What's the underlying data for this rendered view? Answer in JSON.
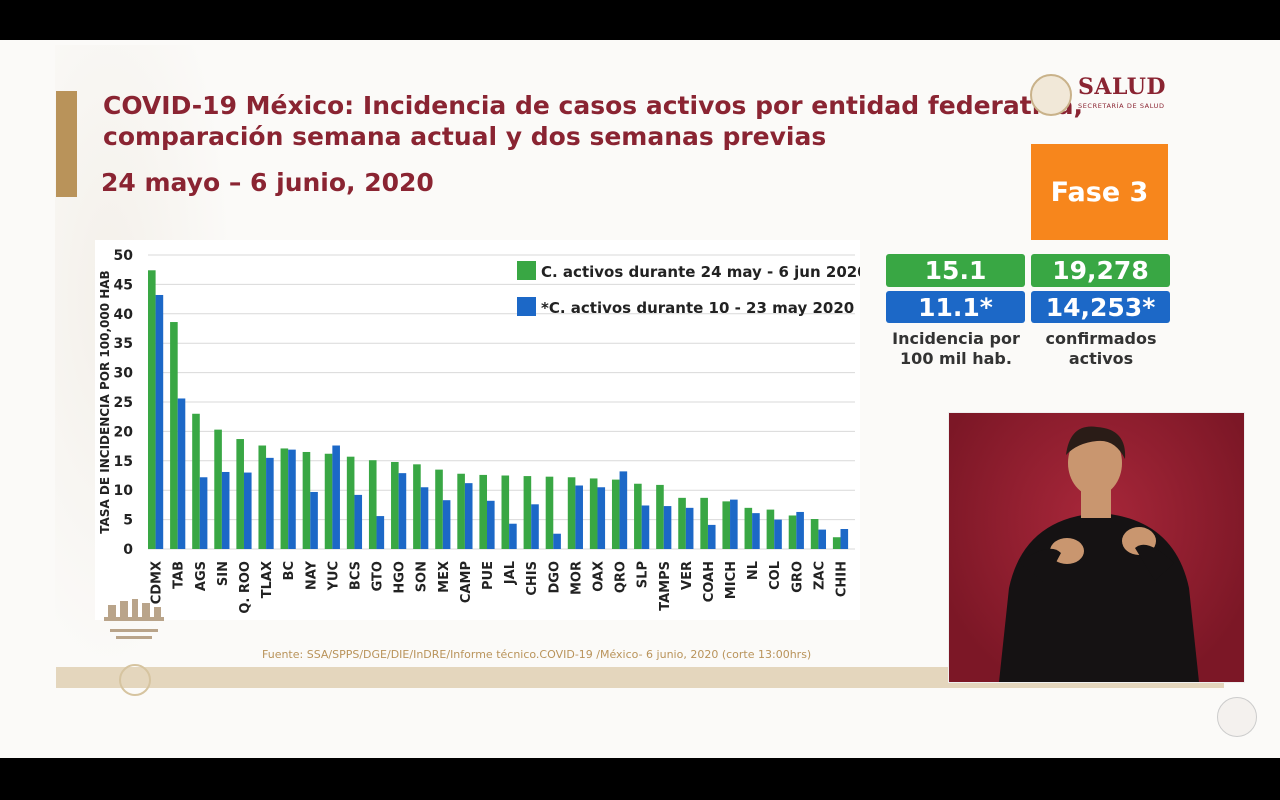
{
  "title": {
    "line1": "COVID-19 México: Incidencia de casos activos por entidad federativa,",
    "line2": "comparación semana actual y dos semanas previas"
  },
  "date_range": "24 mayo – 6 junio, 2020",
  "logo": {
    "name": "SALUD",
    "subtitle": "SECRETARÍA DE SALUD"
  },
  "phase_badge": "Fase 3",
  "stats": {
    "incidence_current": "15.1",
    "incidence_previous": "11.1*",
    "confirmed_current": "19,278",
    "confirmed_previous": "14,253*",
    "incidence_label_1": "Incidencia por",
    "incidence_label_2": "100 mil hab.",
    "confirmed_label_1": "confirmados",
    "confirmed_label_2": "activos"
  },
  "source": "Fuente: SSA/SPPS/DGE/DIE/InDRE/Informe técnico.COVID-19 /México- 6 junio, 2020 (corte 13:00hrs)",
  "colors": {
    "accent": "#8a2432",
    "gold": "#b9935a",
    "green": "#39a744",
    "blue": "#1c68c7",
    "orange": "#f7861c"
  },
  "chart_data": {
    "type": "bar",
    "ylabel": "TASA DE INCIDENCIA POR 100,000 HAB",
    "xlabel": "",
    "ylim": [
      0,
      50
    ],
    "yticks": [
      0,
      5,
      10,
      15,
      20,
      25,
      30,
      35,
      40,
      45,
      50
    ],
    "legend_position": "top-right",
    "categories": [
      "CDMX",
      "TAB",
      "AGS",
      "SIN",
      "Q. ROO",
      "TLAX",
      "BC",
      "NAY",
      "YUC",
      "BCS",
      "GTO",
      "HGO",
      "SON",
      "MEX",
      "CAMP",
      "PUE",
      "JAL",
      "CHIS",
      "DGO",
      "MOR",
      "OAX",
      "QRO",
      "SLP",
      "TAMPS",
      "VER",
      "COAH",
      "MICH",
      "NL",
      "COL",
      "GRO",
      "ZAC",
      "CHIH"
    ],
    "series": [
      {
        "name": "C. activos durante 24 may - 6 jun 2020",
        "color": "#39a744",
        "values": [
          47.4,
          38.6,
          23.0,
          20.3,
          18.7,
          17.6,
          17.1,
          16.5,
          16.2,
          15.7,
          15.1,
          14.8,
          14.4,
          13.5,
          12.8,
          12.6,
          12.5,
          12.4,
          12.3,
          12.2,
          12.0,
          11.8,
          11.1,
          10.9,
          8.7,
          8.7,
          8.1,
          7.0,
          6.7,
          5.7,
          5.1,
          2.0
        ]
      },
      {
        "name": "*C. activos durante  10 - 23 may 2020",
        "color": "#1c68c7",
        "values": [
          43.2,
          25.6,
          12.2,
          13.1,
          13.0,
          15.5,
          16.9,
          9.7,
          17.6,
          9.2,
          5.6,
          12.9,
          10.5,
          8.3,
          11.2,
          8.2,
          4.3,
          7.6,
          2.6,
          10.8,
          10.5,
          13.2,
          7.4,
          7.3,
          7.0,
          4.1,
          8.4,
          6.1,
          5.0,
          6.3,
          3.3,
          3.4
        ]
      }
    ]
  }
}
